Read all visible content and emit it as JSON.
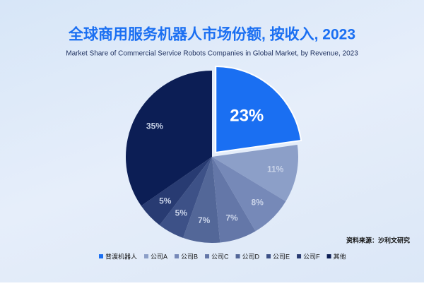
{
  "chart_data": {
    "type": "pie",
    "title": "全球商用服务机器人市场份额, 按收入, 2023",
    "subtitle": "Market Share of Commercial Service Robots Companies in Global Market, by Revenue, 2023",
    "source": "资料来源：沙利文研究",
    "categories": [
      "普渡机器人",
      "公司A",
      "公司B",
      "公司C",
      "公司D",
      "公司E",
      "公司F",
      "其他"
    ],
    "values": [
      23,
      11,
      8,
      7,
      7,
      5,
      5,
      35
    ],
    "value_labels": [
      "23%",
      "11%",
      "8%",
      "7%",
      "7%",
      "5%",
      "5%",
      "35%"
    ],
    "colors": [
      "#1a6ff2",
      "#8c9fc8",
      "#7689b8",
      "#6477a8",
      "#536798",
      "#3d5187",
      "#283b72",
      "#0c1e55"
    ]
  }
}
